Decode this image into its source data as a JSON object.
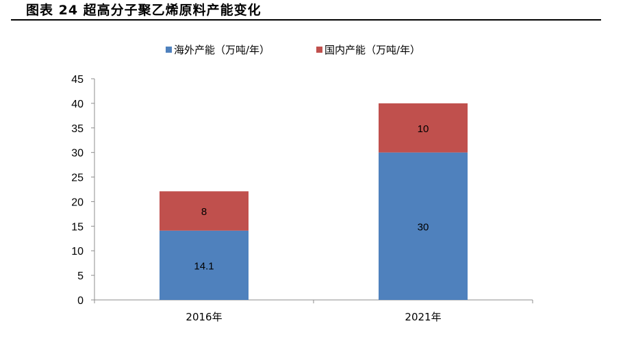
{
  "figure": {
    "title": "图表 24  超高分子聚乙烯原料产能变化"
  },
  "colors": {
    "overseas": "#4f81bd",
    "domestic": "#c0504d"
  },
  "chart_data": {
    "type": "bar",
    "stacked": true,
    "title": "",
    "xlabel": "",
    "ylabel": "",
    "categories": [
      "2016年",
      "2021年"
    ],
    "series": [
      {
        "name": "海外产能（万吨/年）",
        "values": [
          14.1,
          30
        ],
        "labels": [
          "14.1",
          "30"
        ]
      },
      {
        "name": "国内产能（万吨/年）",
        "values": [
          8,
          10
        ],
        "labels": [
          "8",
          "10"
        ]
      }
    ],
    "ylim": [
      0,
      45
    ],
    "yticks": [
      0,
      5,
      10,
      15,
      20,
      25,
      30,
      35,
      40,
      45
    ],
    "grid": false,
    "legend": "top"
  }
}
